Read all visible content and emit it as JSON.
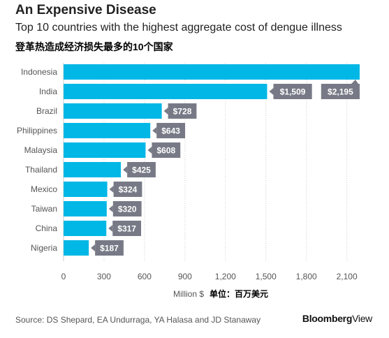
{
  "title": "An Expensive Disease",
  "subtitle": "Top 10 countries with the highest aggregate cost of dengue illness",
  "subtitle_cn": "登革热造成经济损失最多的10个国家",
  "source": "Source: DS Shepard, EA Undurraga, YA Halasa and JD Stanaway",
  "brand": {
    "part1": "Bloomberg",
    "part2": "View"
  },
  "colors": {
    "bar": "#00b7e6",
    "label_bg": "#777a86",
    "label_text": "#ffffff",
    "axis": "#cccccc",
    "text": "#555555"
  },
  "chart_data": {
    "type": "bar",
    "orientation": "horizontal",
    "categories": [
      "Indonesia",
      "India",
      "Brazil",
      "Philippines",
      "Malaysia",
      "Thailand",
      "Mexico",
      "Taiwan",
      "China",
      "Nigeria"
    ],
    "values": [
      2195,
      1509,
      728,
      643,
      608,
      425,
      324,
      320,
      317,
      187
    ],
    "value_labels": [
      "$2,195",
      "$1,509",
      "$728",
      "$643",
      "$608",
      "$425",
      "$324",
      "$320",
      "$317",
      "$187"
    ],
    "x_ticks": [
      0,
      300,
      600,
      900,
      1200,
      1500,
      1800,
      2100
    ],
    "x_tick_labels": [
      "0",
      "300",
      "600",
      "900",
      "1,200",
      "1,500",
      "1,800",
      "2,100"
    ],
    "xlabel": "Million $",
    "xlabel_cn": "单位：百万美元",
    "xlim": [
      0,
      2195
    ]
  }
}
